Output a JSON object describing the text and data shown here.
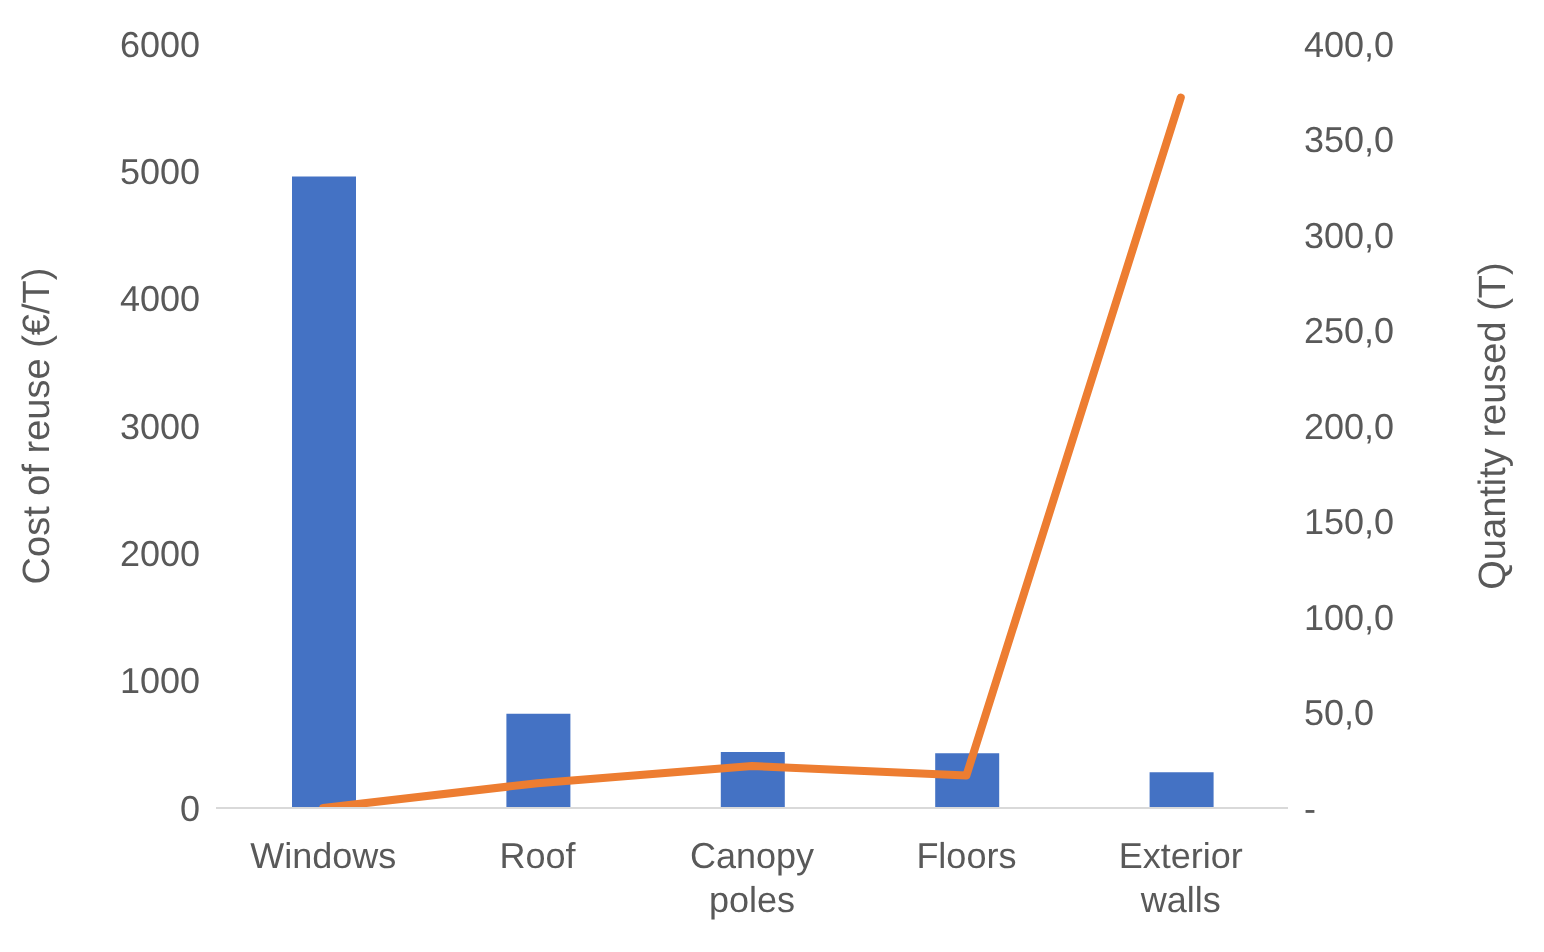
{
  "chart_data": {
    "type": "bar",
    "categories": [
      "Windows",
      "Roof",
      "Canopy poles",
      "Floors",
      "Exterior walls"
    ],
    "ylabel": "Cost of reuse (€/T)",
    "y2label": "Quantity reused (T)",
    "ylim": [
      0,
      6000
    ],
    "yticks": [
      0,
      1000,
      2000,
      3000,
      4000,
      5000,
      6000
    ],
    "y2lim": [
      0,
      400
    ],
    "y2ticks": [
      {
        "value": 0,
        "label": "-"
      },
      {
        "value": 50,
        "label": "50,0"
      },
      {
        "value": 100,
        "label": "100,0"
      },
      {
        "value": 150,
        "label": "150,0"
      },
      {
        "value": 200,
        "label": "200,0"
      },
      {
        "value": 250,
        "label": "250,0"
      },
      {
        "value": 300,
        "label": "300,0"
      },
      {
        "value": 350,
        "label": "350,0"
      },
      {
        "value": 400,
        "label": "400,0"
      }
    ],
    "series": [
      {
        "color": "#4472c4",
        "values": [
          4960,
          740,
          440,
          430,
          280
        ]
      },
      {
        "type": "line",
        "axis": "y2",
        "color": "#ed7d31",
        "values": [
          0,
          13,
          22,
          17,
          372
        ]
      }
    ],
    "grid": false,
    "legend": false,
    "marker": "none",
    "line_style": "solid"
  }
}
